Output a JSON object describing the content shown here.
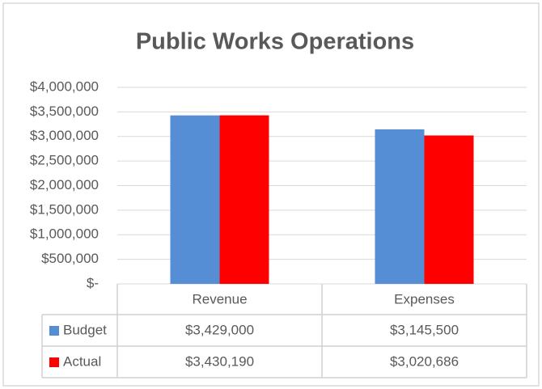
{
  "chart_data": {
    "type": "bar",
    "title": "Public Works Operations",
    "categories": [
      "Revenue",
      "Expenses"
    ],
    "series": [
      {
        "name": "Budget",
        "color": "#558ed5",
        "values": [
          3429000,
          3145500
        ],
        "value_labels": [
          "$3,429,000",
          "$3,145,500"
        ]
      },
      {
        "name": "Actual",
        "color": "#ff0000",
        "values": [
          3430190,
          3020686
        ],
        "value_labels": [
          "$3,430,190",
          "$3,020,686"
        ]
      }
    ],
    "ylim": [
      0,
      4000000
    ],
    "yticks": [
      {
        "value": 0,
        "label": "$-"
      },
      {
        "value": 500000,
        "label": "$500,000"
      },
      {
        "value": 1000000,
        "label": "$1,000,000"
      },
      {
        "value": 1500000,
        "label": "$1,500,000"
      },
      {
        "value": 2000000,
        "label": "$2,000,000"
      },
      {
        "value": 2500000,
        "label": "$2,500,000"
      },
      {
        "value": 3000000,
        "label": "$3,000,000"
      },
      {
        "value": 3500000,
        "label": "$3,500,000"
      },
      {
        "value": 4000000,
        "label": "$4,000,000"
      }
    ],
    "grid": true
  }
}
